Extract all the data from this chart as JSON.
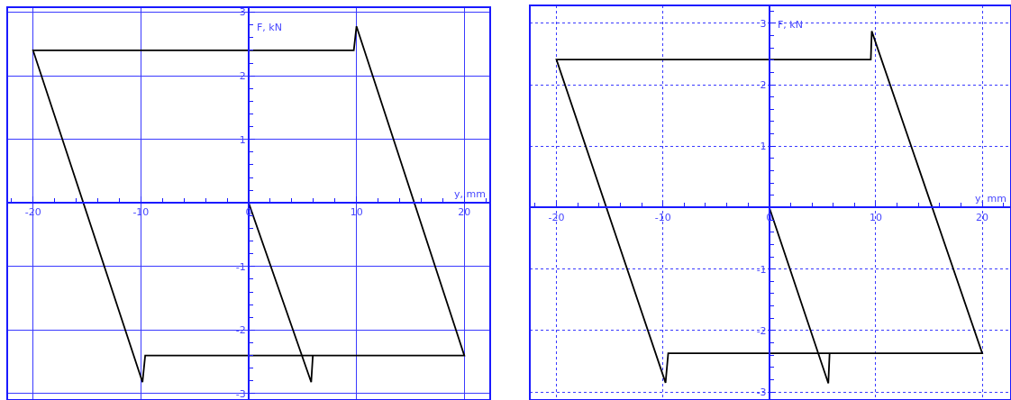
{
  "chart_data": [
    {
      "type": "line",
      "xlabel": "y, mm",
      "ylabel": "F, kN",
      "grid": true,
      "line_style": "solid",
      "x": [
        0,
        5.8,
        5.95,
        20,
        10.0,
        9.75,
        -20,
        -9.85,
        -9.6,
        20
      ],
      "series": [
        {
          "color": "#000000",
          "values": [
            0,
            -2.82,
            -2.4,
            -2.4,
            2.78,
            2.4,
            2.4,
            -2.82,
            -2.4,
            -2.4
          ]
        }
      ],
      "xlim": [
        -22.4,
        22.4
      ],
      "ylim": [
        -3.1,
        3.08
      ],
      "xticks": [
        {
          "value": -22,
          "label": null
        },
        -20,
        {
          "value": -18,
          "label": null
        },
        {
          "value": -16,
          "label": null
        },
        {
          "value": -14,
          "label": null
        },
        {
          "value": -12,
          "label": null
        },
        -10,
        {
          "value": -8,
          "label": null
        },
        {
          "value": -6,
          "label": null
        },
        {
          "value": -4,
          "label": null
        },
        {
          "value": -2,
          "label": null
        },
        0,
        {
          "value": 2,
          "label": null
        },
        {
          "value": 4,
          "label": null
        },
        {
          "value": 6,
          "label": null
        },
        {
          "value": 8,
          "label": null
        },
        10,
        {
          "value": 12,
          "label": null
        },
        {
          "value": 14,
          "label": null
        },
        {
          "value": 16,
          "label": null
        },
        {
          "value": 18,
          "label": null
        },
        20,
        {
          "value": 22,
          "label": null
        }
      ],
      "yticks": [
        -3,
        {
          "value": -2.8,
          "label": null
        },
        {
          "value": -2.6,
          "label": null
        },
        {
          "value": -2.4,
          "label": null
        },
        {
          "value": -2.2,
          "label": null
        },
        -2,
        {
          "value": -1.8,
          "label": null
        },
        {
          "value": -1.6,
          "label": null
        },
        {
          "value": -1.4,
          "label": null
        },
        {
          "value": -1.2,
          "label": null
        },
        -1,
        {
          "value": -0.8,
          "label": null
        },
        {
          "value": -0.6,
          "label": null
        },
        {
          "value": -0.4,
          "label": null
        },
        {
          "value": -0.2,
          "label": null
        },
        {
          "value": 0,
          "label": null
        },
        {
          "value": 0.2,
          "label": null
        },
        {
          "value": 0.4,
          "label": null
        },
        {
          "value": 0.6,
          "label": null
        },
        {
          "value": 0.8,
          "label": null
        },
        1,
        {
          "value": 1.2,
          "label": null
        },
        {
          "value": 1.4,
          "label": null
        },
        {
          "value": 1.6,
          "label": null
        },
        {
          "value": 1.8,
          "label": null
        },
        2,
        {
          "value": 2.2,
          "label": null
        },
        {
          "value": 2.4,
          "label": null
        },
        {
          "value": 2.6,
          "label": null
        },
        {
          "value": 2.8,
          "label": null
        },
        3
      ]
    },
    {
      "type": "line",
      "xlabel": "y, mm",
      "ylabel": "F, kN",
      "grid": true,
      "line_style": "solid",
      "x": [
        0,
        5.54,
        5.66,
        20,
        9.62,
        9.53,
        -20,
        -9.75,
        -9.5,
        20
      ],
      "series": [
        {
          "color": "#000000",
          "values": [
            0,
            -2.86,
            -2.37,
            -2.37,
            2.87,
            2.41,
            2.41,
            -2.85,
            -2.37,
            -2.37
          ]
        }
      ],
      "xlim": [
        -22.5,
        22.7
      ],
      "ylim": [
        -3.13,
        3.29
      ],
      "xticks": [
        {
          "value": -22,
          "label": null
        },
        -20,
        {
          "value": -18,
          "label": null
        },
        {
          "value": -16,
          "label": null
        },
        {
          "value": -14,
          "label": null
        },
        {
          "value": -12,
          "label": null
        },
        -10,
        {
          "value": -8,
          "label": null
        },
        {
          "value": -6,
          "label": null
        },
        {
          "value": -4,
          "label": null
        },
        {
          "value": -2,
          "label": null
        },
        0,
        {
          "value": 2,
          "label": null
        },
        {
          "value": 4,
          "label": null
        },
        {
          "value": 6,
          "label": null
        },
        {
          "value": 8,
          "label": null
        },
        10,
        {
          "value": 12,
          "label": null
        },
        {
          "value": 14,
          "label": null
        },
        {
          "value": 16,
          "label": null
        },
        {
          "value": 18,
          "label": null
        },
        20,
        {
          "value": 22,
          "label": null
        }
      ],
      "yticks": [
        -3,
        {
          "value": -2.8,
          "label": null
        },
        {
          "value": -2.6,
          "label": null
        },
        {
          "value": -2.4,
          "label": null
        },
        {
          "value": -2.2,
          "label": null
        },
        -2,
        {
          "value": -1.8,
          "label": null
        },
        {
          "value": -1.6,
          "label": null
        },
        {
          "value": -1.4,
          "label": null
        },
        {
          "value": -1.2,
          "label": null
        },
        -1,
        {
          "value": -0.8,
          "label": null
        },
        {
          "value": -0.6,
          "label": null
        },
        {
          "value": -0.4,
          "label": null
        },
        {
          "value": -0.2,
          "label": null
        },
        {
          "value": 0,
          "label": null
        },
        {
          "value": 0.2,
          "label": null
        },
        {
          "value": 0.4,
          "label": null
        },
        {
          "value": 0.6,
          "label": null
        },
        {
          "value": 0.8,
          "label": null
        },
        1,
        {
          "value": 1.2,
          "label": null
        },
        {
          "value": 1.4,
          "label": null
        },
        {
          "value": 1.6,
          "label": null
        },
        {
          "value": 1.8,
          "label": null
        },
        2,
        {
          "value": 2.2,
          "label": null
        },
        {
          "value": 2.4,
          "label": null
        },
        {
          "value": 2.6,
          "label": null
        },
        {
          "value": 2.8,
          "label": null
        },
        3,
        {
          "value": 3.2,
          "label": null
        }
      ]
    }
  ]
}
